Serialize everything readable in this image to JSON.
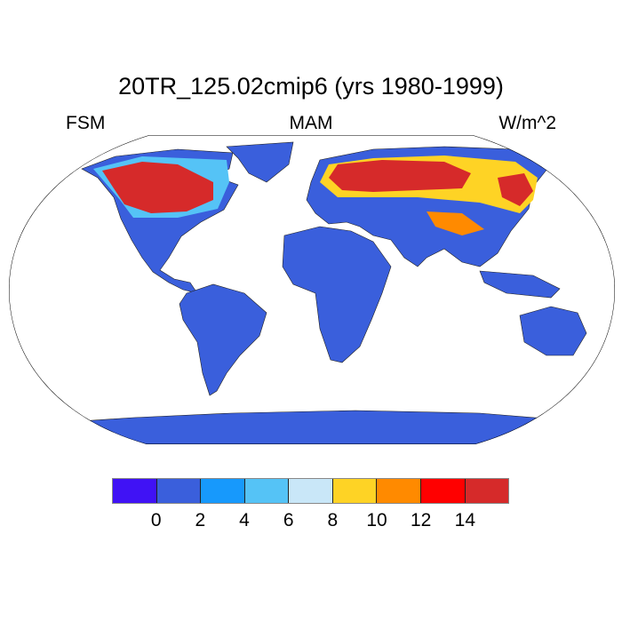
{
  "title": "20TR_125.02cmip6 (yrs 1980-1999)",
  "left_label": "FSM",
  "center_label": "MAM",
  "right_label": "W/m^2",
  "map": {
    "projection": "robinson",
    "land_color": "#3a5fdc",
    "ocean_color": "#ffffff"
  },
  "colorbar": {
    "colors": [
      "#4012f5",
      "#3a5fdc",
      "#1799fc",
      "#55c3f6",
      "#c9e7f8",
      "#fed325",
      "#ff8a00",
      "#ff0000",
      "#d62a2a"
    ],
    "tick_labels": [
      "0",
      "2",
      "4",
      "6",
      "8",
      "10",
      "12",
      "14"
    ]
  }
}
